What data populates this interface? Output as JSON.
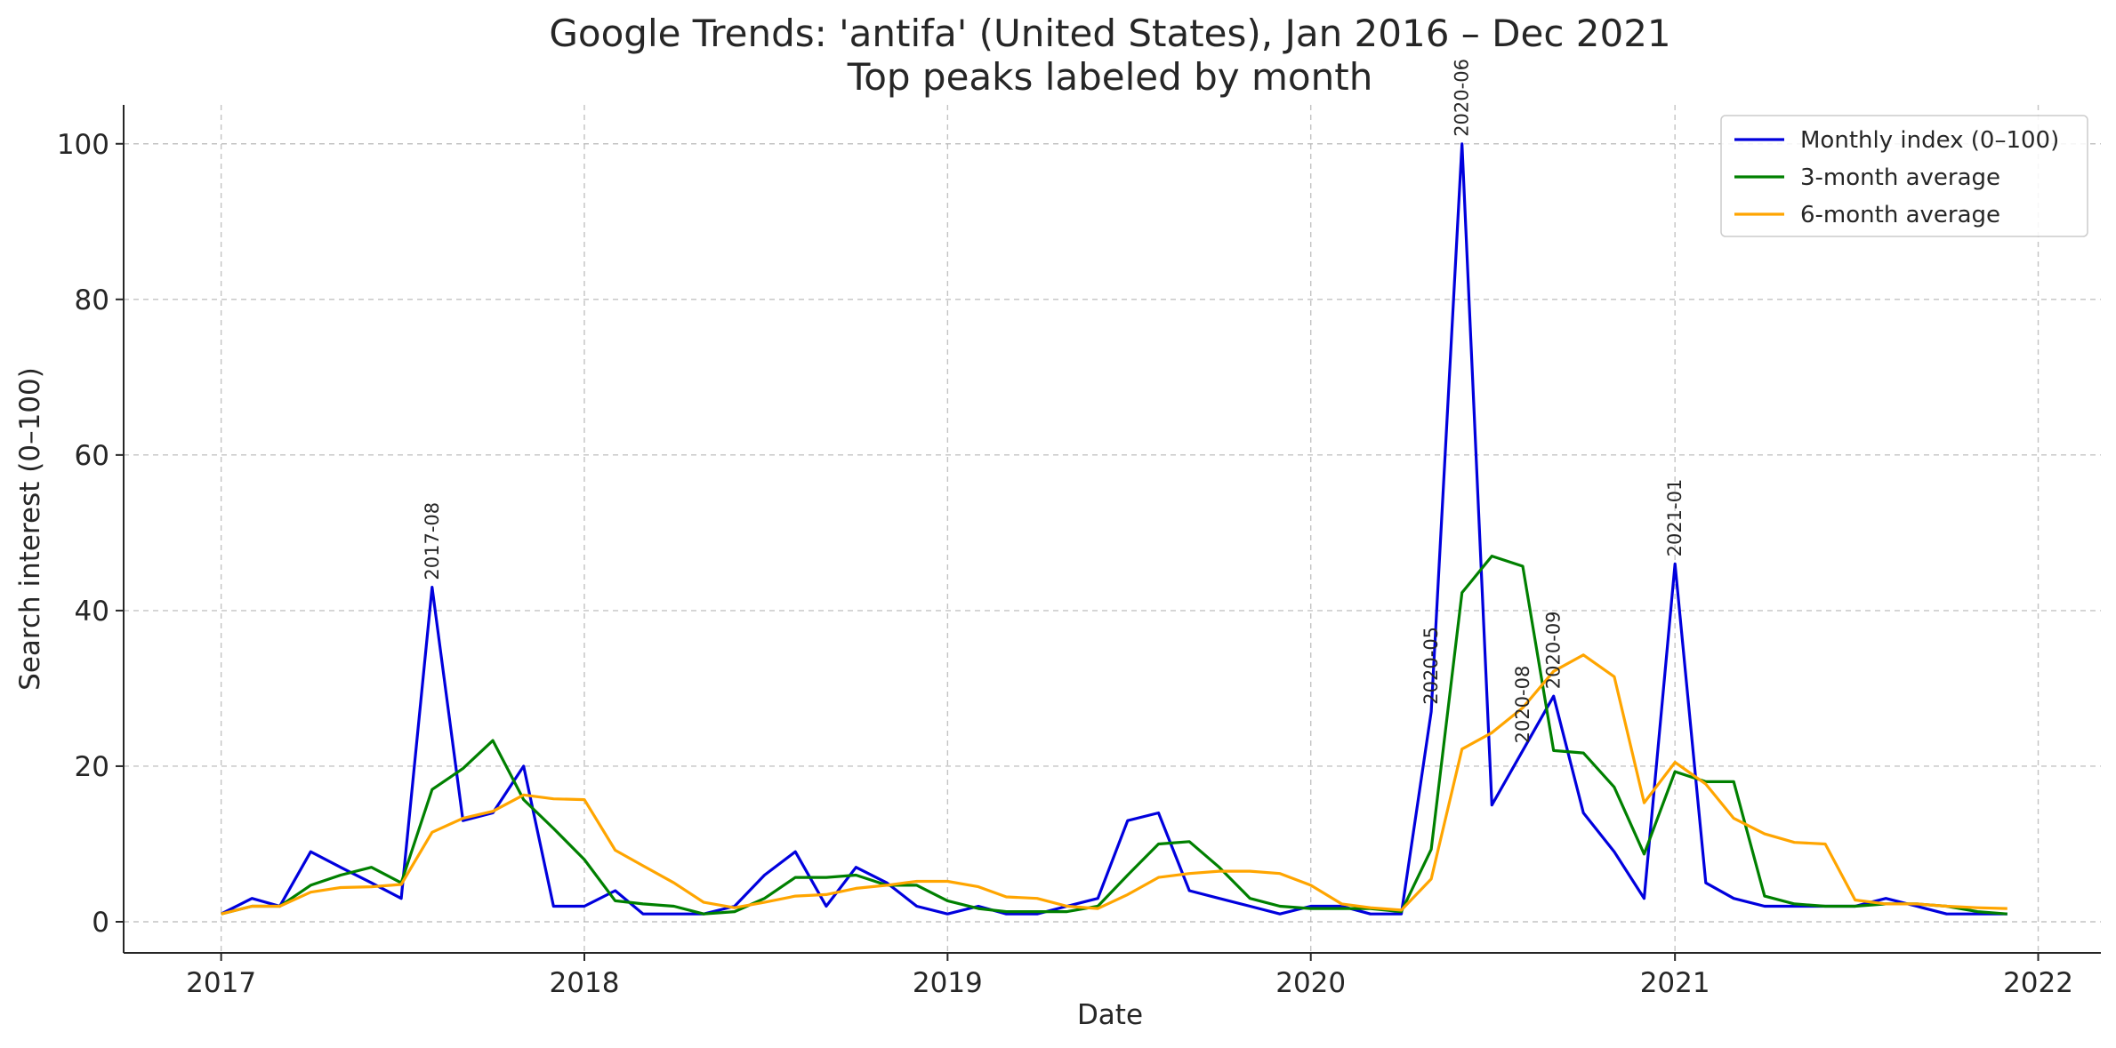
{
  "chart_data": {
    "type": "line",
    "title_line1": "Google Trends: 'antifa' (United States), Jan 2016 – Dec 2021",
    "title_line2": "Top peaks labeled by month",
    "xlabel": "Date",
    "ylabel": "Search interest (0–100)",
    "xlim": [
      "2016-09-25",
      "2022-03-05"
    ],
    "ylim": [
      -4,
      105
    ],
    "x_ticks": [
      {
        "date": "2017-01-01",
        "label": "2017"
      },
      {
        "date": "2018-01-01",
        "label": "2018"
      },
      {
        "date": "2019-01-01",
        "label": "2019"
      },
      {
        "date": "2020-01-01",
        "label": "2020"
      },
      {
        "date": "2021-01-01",
        "label": "2021"
      },
      {
        "date": "2022-01-01",
        "label": "2022"
      }
    ],
    "y_ticks": [
      0,
      20,
      40,
      60,
      80,
      100
    ],
    "grid": true,
    "legend_position": "top-right",
    "x": [
      "2017-01",
      "2017-02",
      "2017-03",
      "2017-04",
      "2017-05",
      "2017-06",
      "2017-07",
      "2017-08",
      "2017-09",
      "2017-10",
      "2017-11",
      "2017-12",
      "2018-01",
      "2018-02",
      "2018-03",
      "2018-04",
      "2018-05",
      "2018-06",
      "2018-07",
      "2018-08",
      "2018-09",
      "2018-10",
      "2018-11",
      "2018-12",
      "2019-01",
      "2019-02",
      "2019-03",
      "2019-04",
      "2019-05",
      "2019-06",
      "2019-07",
      "2019-08",
      "2019-09",
      "2019-10",
      "2019-11",
      "2019-12",
      "2020-01",
      "2020-02",
      "2020-03",
      "2020-04",
      "2020-05",
      "2020-06",
      "2020-07",
      "2020-08",
      "2020-09",
      "2020-10",
      "2020-11",
      "2020-12",
      "2021-01",
      "2021-02",
      "2021-03",
      "2021-04",
      "2021-05",
      "2021-06",
      "2021-07",
      "2021-08",
      "2021-09",
      "2021-10",
      "2021-11",
      "2021-12"
    ],
    "series": [
      {
        "name": "Monthly index (0–100)",
        "color": "#0000dd",
        "values": [
          1,
          3,
          2,
          9,
          7,
          5,
          3,
          43,
          13,
          14,
          20,
          2,
          2,
          4,
          1,
          1,
          1,
          2,
          6,
          9,
          2,
          7,
          5,
          2,
          1,
          2,
          1,
          1,
          2,
          3,
          13,
          14,
          4,
          3,
          2,
          1,
          2,
          2,
          1,
          1,
          27,
          100,
          15,
          22,
          29,
          14,
          9,
          3,
          46,
          5,
          3,
          2,
          2,
          2,
          2,
          3,
          2,
          1,
          1,
          1
        ]
      },
      {
        "name": "3-month average",
        "color": "#008000",
        "values": [
          1,
          2,
          2,
          4.7,
          6,
          7,
          5,
          17,
          19.7,
          23.3,
          15.7,
          12,
          8,
          2.7,
          2.3,
          2,
          1,
          1.3,
          3,
          5.7,
          5.7,
          6,
          4.7,
          4.7,
          2.7,
          1.7,
          1.3,
          1.3,
          1.3,
          2,
          6,
          10,
          10.3,
          7,
          3,
          2,
          1.7,
          1.7,
          1.7,
          1.3,
          9.3,
          42.3,
          47,
          45.7,
          22,
          21.7,
          17.3,
          8.7,
          19.3,
          18,
          18,
          3.3,
          2.3,
          2,
          2,
          2.3,
          2.3,
          2,
          1.3,
          1
        ]
      },
      {
        "name": "6-month average",
        "color": "#ffa500",
        "values": [
          1,
          2,
          2,
          3.8,
          4.4,
          4.5,
          4.8,
          11.5,
          13.3,
          14.2,
          16.3,
          15.8,
          15.7,
          9.2,
          7.2,
          5,
          2.5,
          1.8,
          2.5,
          3.3,
          3.5,
          4.3,
          4.7,
          5.2,
          5.2,
          4.5,
          3.2,
          3,
          2,
          1.7,
          3.5,
          5.7,
          6.2,
          6.5,
          6.5,
          6.2,
          4.7,
          2.3,
          1.8,
          1.5,
          5.5,
          22.2,
          24.3,
          27.5,
          32.2,
          34.3,
          31.5,
          15.3,
          20.5,
          17.7,
          13.3,
          11.3,
          10.2,
          10,
          2.8,
          2.3,
          2.3,
          2,
          1.8,
          1.7
        ]
      }
    ],
    "annotations": [
      {
        "x": "2017-08",
        "y": 43,
        "label": "2017-08"
      },
      {
        "x": "2020-05",
        "y": 27,
        "label": "2020-05"
      },
      {
        "x": "2020-06",
        "y": 100,
        "label": "2020-06"
      },
      {
        "x": "2020-08",
        "y": 22,
        "label": "2020-08"
      },
      {
        "x": "2020-09",
        "y": 29,
        "label": "2020-09"
      },
      {
        "x": "2021-01",
        "y": 46,
        "label": "2021-01"
      }
    ]
  }
}
